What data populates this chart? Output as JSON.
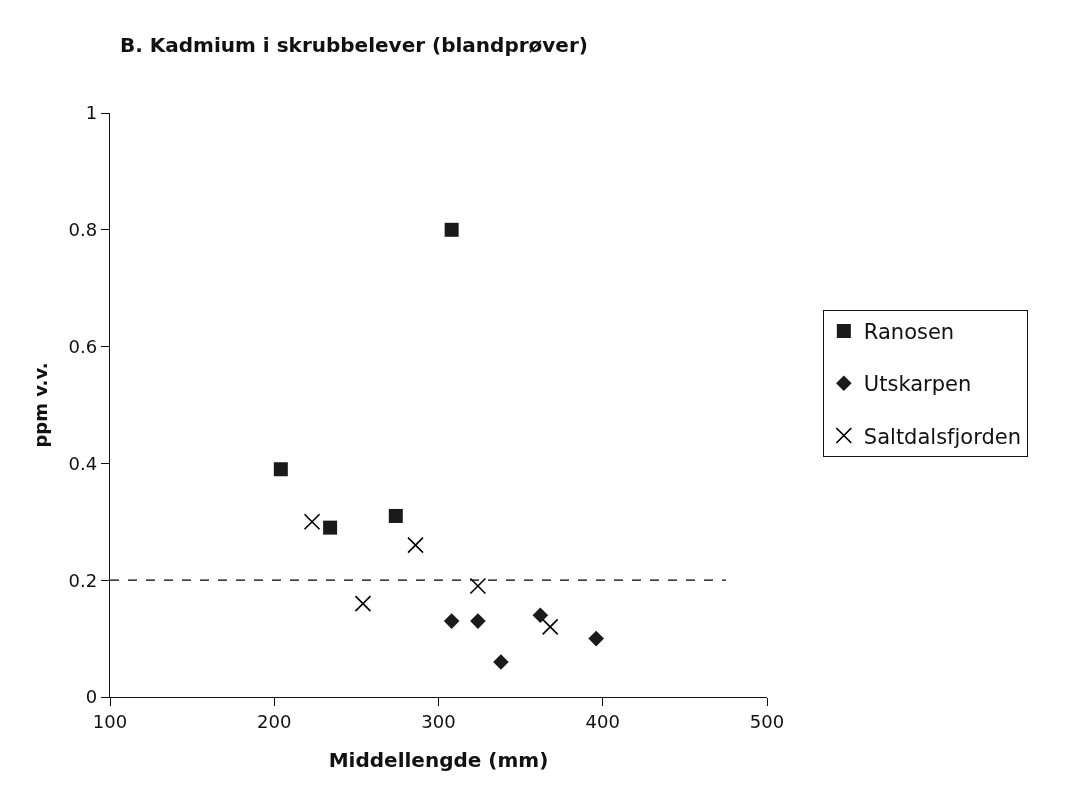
{
  "chart_data": {
    "type": "scatter",
    "title": "B. Kadmium i skrubbelever (blandprøver)",
    "xlabel": "Middellengde (mm)",
    "ylabel": "ppm v.v.",
    "xlim": [
      100,
      500
    ],
    "xticks": [
      100,
      200,
      300,
      400,
      500
    ],
    "ylim": [
      0,
      1
    ],
    "yticks": [
      0,
      0.2,
      0.4,
      0.6,
      0.8,
      1
    ],
    "legend": "right",
    "series": [
      {
        "name": "Ranosen",
        "color": "#1a1a1a",
        "marker": "square",
        "x": [
          204,
          234,
          274,
          308
        ],
        "values": [
          0.39,
          0.29,
          0.31,
          0.8
        ]
      },
      {
        "name": "Utskarpen",
        "color": "#1a1a1a",
        "marker": "diamond",
        "x": [
          308,
          324,
          338,
          362,
          396
        ],
        "values": [
          0.13,
          0.13,
          0.06,
          0.14,
          0.1
        ]
      },
      {
        "name": "Saltdalsfjorden",
        "color": "#000000",
        "marker": "cross",
        "x": [
          223,
          254,
          286,
          324,
          368
        ],
        "values": [
          0.3,
          0.16,
          0.26,
          0.19,
          0.12
        ]
      },
      {
        "type": "line",
        "color": "#000000",
        "line_style": "dashed",
        "x": [
          100,
          475
        ],
        "values": [
          0.2,
          0.2
        ]
      }
    ]
  }
}
